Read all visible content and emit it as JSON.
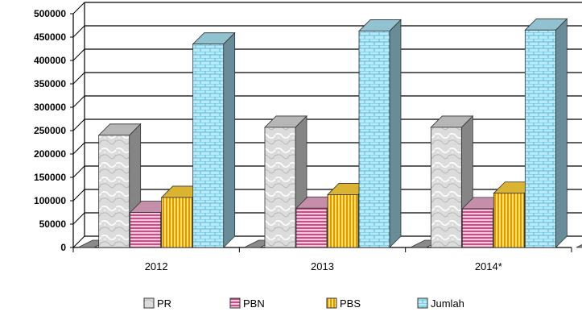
{
  "chart_data": {
    "type": "bar",
    "title": "",
    "xlabel": "",
    "ylabel": "",
    "categories": [
      "2012",
      "2013",
      "2014*"
    ],
    "series": [
      {
        "name": "PR",
        "values": [
          240000,
          257000,
          257000
        ],
        "color": "#d6d6d6",
        "pattern": "marble"
      },
      {
        "name": "PBN",
        "values": [
          75000,
          84000,
          83000
        ],
        "color": "#e8a8c8",
        "pattern": "horizontal-stripes"
      },
      {
        "name": "PBS",
        "values": [
          107000,
          113000,
          116000
        ],
        "color": "#ffd23a",
        "pattern": "vertical-stripes"
      },
      {
        "name": "Jumlah",
        "values": [
          435000,
          463000,
          465000
        ],
        "color": "#a9e4f5",
        "pattern": "brick"
      }
    ],
    "ylim": [
      0,
      500000
    ],
    "yticks": [
      "0",
      "50000",
      "100000",
      "150000",
      "200000",
      "250000",
      "300000",
      "350000",
      "400000",
      "450000",
      "500000"
    ],
    "grid": true,
    "legend_position": "bottom",
    "style": "3d-clustered-column"
  }
}
